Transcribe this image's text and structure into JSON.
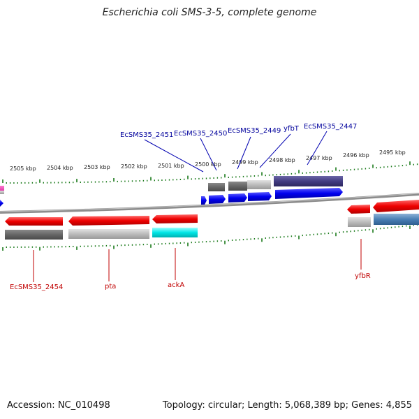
{
  "title": "Escherichia coli SMS-3-5, complete genome",
  "footer": {
    "accession": "Accession: NC_010498",
    "topology": "Topology: circular; Length: 5,068,389 bp; Genes: 4,855"
  },
  "colors": {
    "plus_label": "#00009c",
    "minus_label": "#c00000",
    "tick": "#1a7a1a",
    "backbone": "#8c8c8c"
  },
  "scale_labels": [
    "2505 kbp",
    "2504 kbp",
    "2503 kbp",
    "2502 kbp",
    "2501 kbp",
    "2500 kbp",
    "2499 kbp",
    "2498 kbp",
    "2497 kbp",
    "2496 kbp",
    "2495 kbp"
  ],
  "gene_labels_plus": [
    "EcSMS35_2451",
    "EcSMS35_2450",
    "EcSMS35_2449",
    "yfbT",
    "EcSMS35_2447"
  ],
  "gene_labels_minus": [
    "EcSMS35_2454",
    "pta",
    "ackA",
    "yfbR"
  ]
}
